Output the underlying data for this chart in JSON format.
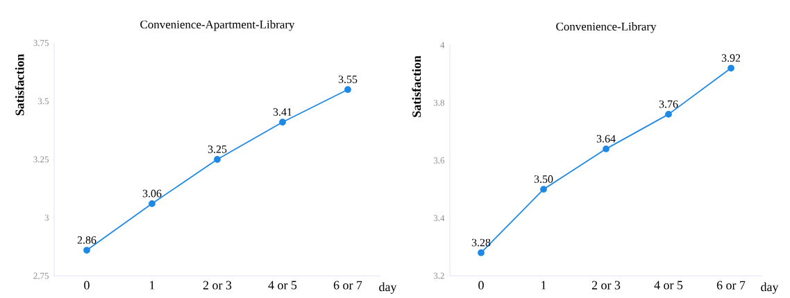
{
  "chart_data": [
    {
      "type": "line",
      "title": "Convenience-Apartment-Library",
      "ylabel": "Satisfaction",
      "xlabel": "day",
      "categories": [
        "0",
        "1",
        "2 or 3",
        "4 or 5",
        "6 or 7"
      ],
      "series": [
        {
          "color": "#1e88e5",
          "values": [
            2.86,
            3.06,
            3.25,
            3.41,
            3.55
          ],
          "value_labels": [
            "2.86",
            "3.06",
            "3.25",
            "3.41",
            "3.55"
          ]
        }
      ],
      "ylim": [
        2.75,
        3.75
      ],
      "yticks": [
        2.75,
        3,
        3.25,
        3.5,
        3.75
      ],
      "marker": "circle",
      "line_style": "solid"
    },
    {
      "type": "line",
      "title": "Convenience-Library",
      "ylabel": "Satisfaction",
      "xlabel": "day",
      "categories": [
        "0",
        "1",
        "2 or 3",
        "4 or 5",
        "6 or 7"
      ],
      "series": [
        {
          "color": "#1e88e5",
          "values": [
            3.28,
            3.5,
            3.64,
            3.76,
            3.92
          ],
          "value_labels": [
            "3.28",
            "3.50",
            "3.64",
            "3.76",
            "3.92"
          ]
        }
      ],
      "ylim": [
        3.2,
        4
      ],
      "yticks": [
        3.2,
        3.4,
        3.6,
        3.8,
        4
      ],
      "marker": "circle",
      "line_style": "solid"
    }
  ]
}
